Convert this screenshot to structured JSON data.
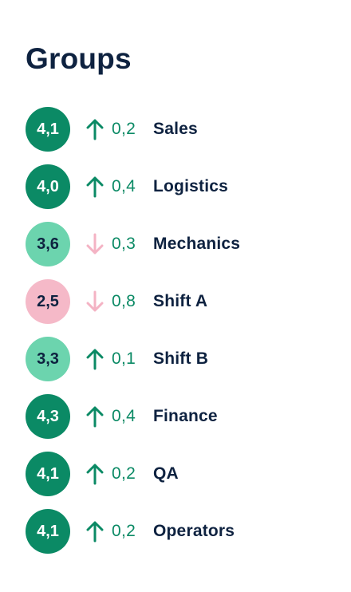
{
  "title": "Groups",
  "colors": {
    "dark_green": "#0b8a65",
    "light_green": "#6cd4ae",
    "pink": "#f5b9c8",
    "up_arrow": "#0b8a65",
    "down_arrow": "#f4b3c4",
    "text_dark": "#0e2240",
    "delta_text": "#0b8a65"
  },
  "groups": [
    {
      "score": "4,1",
      "score_style": "dark_green",
      "direction": "up",
      "arrow_icon": "arrow-up-icon",
      "delta": "0,2",
      "name": "Sales"
    },
    {
      "score": "4,0",
      "score_style": "dark_green",
      "direction": "up",
      "arrow_icon": "arrow-up-icon",
      "delta": "0,4",
      "name": "Logistics"
    },
    {
      "score": "3,6",
      "score_style": "light_green",
      "direction": "down",
      "arrow_icon": "arrow-down-icon",
      "delta": "0,3",
      "name": "Mechanics"
    },
    {
      "score": "2,5",
      "score_style": "pink",
      "direction": "down",
      "arrow_icon": "arrow-down-icon",
      "delta": "0,8",
      "name": "Shift A"
    },
    {
      "score": "3,3",
      "score_style": "light_green",
      "direction": "up",
      "arrow_icon": "arrow-up-icon",
      "delta": "0,1",
      "name": "Shift B"
    },
    {
      "score": "4,3",
      "score_style": "dark_green",
      "direction": "up",
      "arrow_icon": "arrow-up-icon",
      "delta": "0,4",
      "name": "Finance"
    },
    {
      "score": "4,1",
      "score_style": "dark_green",
      "direction": "up",
      "arrow_icon": "arrow-up-icon",
      "delta": "0,2",
      "name": "QA"
    },
    {
      "score": "4,1",
      "score_style": "dark_green",
      "direction": "up",
      "arrow_icon": "arrow-up-icon",
      "delta": "0,2",
      "name": "Operators"
    }
  ]
}
